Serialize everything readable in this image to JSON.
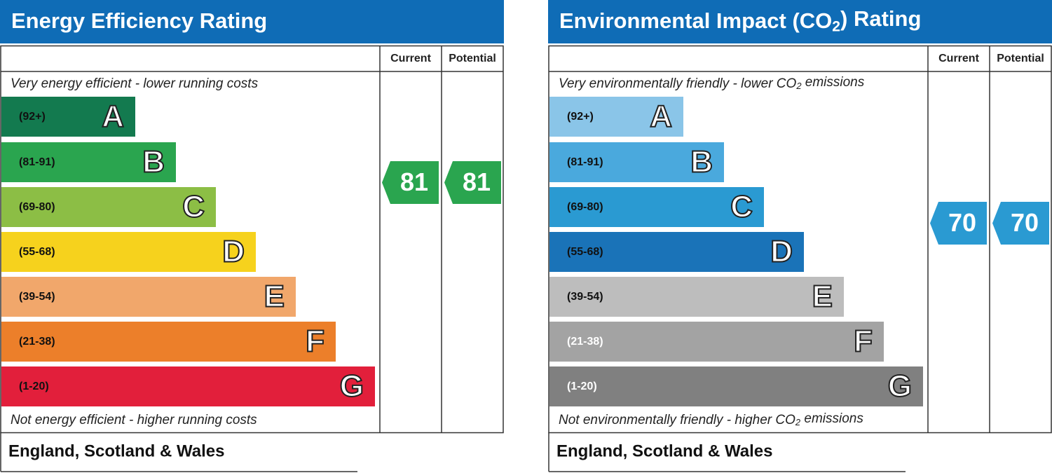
{
  "panels": [
    {
      "title": [
        "Energy Efficiency Rating"
      ],
      "columns": [
        "Current",
        "Potential"
      ],
      "top_note": [
        "Very energy efficient - lower running costs"
      ],
      "bands": [
        {
          "range": "(92+)",
          "letter": "A",
          "color": "#137a4f"
        },
        {
          "range": "(81-91)",
          "letter": "B",
          "color": "#2aa54f"
        },
        {
          "range": "(69-80)",
          "letter": "C",
          "color": "#8cbe45"
        },
        {
          "range": "(55-68)",
          "letter": "D",
          "color": "#f6d21d"
        },
        {
          "range": "(39-54)",
          "letter": "E",
          "color": "#f1a76b"
        },
        {
          "range": "(21-38)",
          "letter": "F",
          "color": "#ec7f2a"
        },
        {
          "range": "(1-20)",
          "letter": "G",
          "color": "#e21f3b"
        }
      ],
      "bottom_note": [
        "Not energy efficient - higher running costs"
      ],
      "current": 81,
      "potential": 81,
      "rating_color": "#2aa54f",
      "footer": "England, Scotland & Wales"
    },
    {
      "title": [
        "Environmental Impact (CO",
        "2",
        ") Rating"
      ],
      "columns": [
        "Current",
        "Potential"
      ],
      "top_note": [
        "Very environmentally friendly - lower CO",
        "2",
        " emissions"
      ],
      "bands": [
        {
          "range": "(92+)",
          "letter": "A",
          "color": "#8ac5e8"
        },
        {
          "range": "(81-91)",
          "letter": "B",
          "color": "#4aa9dd"
        },
        {
          "range": "(69-80)",
          "letter": "C",
          "color": "#2a9ad2"
        },
        {
          "range": "(55-68)",
          "letter": "D",
          "color": "#1a73b8"
        },
        {
          "range": "(39-54)",
          "letter": "E",
          "color": "#bdbdbd"
        },
        {
          "range": "(21-38)",
          "letter": "F",
          "color": "#a3a3a3"
        },
        {
          "range": "(1-20)",
          "letter": "G",
          "color": "#808080"
        }
      ],
      "bottom_note": [
        "Not environmentally friendly - higher CO",
        "2",
        " emissions"
      ],
      "current": 70,
      "potential": 70,
      "rating_color": "#2a9ad2",
      "footer": "England, Scotland & Wales"
    }
  ]
}
